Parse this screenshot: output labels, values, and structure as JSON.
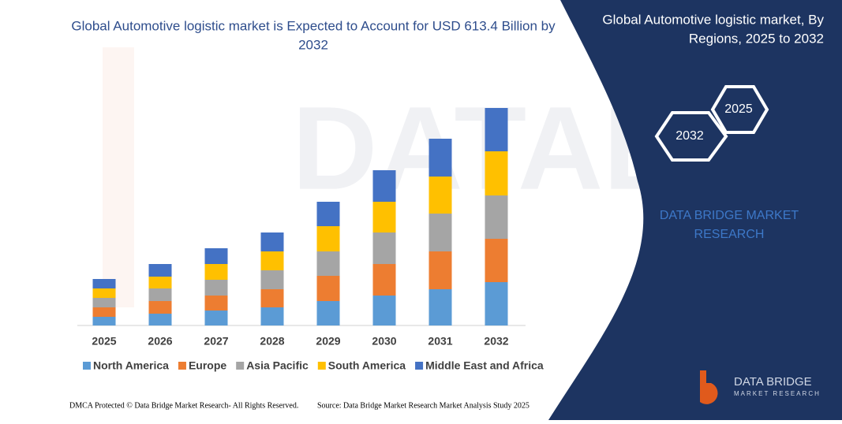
{
  "chart_data": {
    "type": "stacked-bar",
    "title": "Global Automotive logistic market is Expected to Account for USD 613.4 Billion by 2032",
    "categories": [
      "2025",
      "2026",
      "2027",
      "2028",
      "2029",
      "2030",
      "2031",
      "2032"
    ],
    "series": [
      {
        "name": "North America",
        "color": "#5b9bd5",
        "values": [
          11,
          15,
          19,
          23,
          31,
          38,
          46,
          55
        ]
      },
      {
        "name": "Europe",
        "color": "#ed7d31",
        "values": [
          12,
          16,
          19,
          23,
          32,
          40,
          48,
          55
        ]
      },
      {
        "name": "Asia Pacific",
        "color": "#a5a5a5",
        "values": [
          12,
          16,
          20,
          24,
          31,
          40,
          48,
          55
        ]
      },
      {
        "name": "South America",
        "color": "#ffc000",
        "values": [
          12,
          15,
          20,
          24,
          32,
          39,
          47,
          56
        ]
      },
      {
        "name": "Middle East and Africa",
        "color": "#4472c4",
        "values": [
          12,
          16,
          20,
          24,
          31,
          40,
          48,
          55
        ]
      }
    ],
    "ylim": [
      0,
      280
    ],
    "legend": "bottom"
  },
  "panel": {
    "title": "Global Automotive logistic market, By Regions, 2025 to 2032",
    "hex_front": "2032",
    "hex_back": "2025",
    "brand": "DATA BRIDGE MARKET RESEARCH"
  },
  "logo": {
    "name": "DATA BRIDGE",
    "tagline": "MARKET RESEARCH"
  },
  "footer": {
    "left": "DMCA Protected © Data Bridge Market Research- All Rights Reserved.",
    "right": "Source: Data Bridge Market Research Market Analysis Study 2025"
  }
}
